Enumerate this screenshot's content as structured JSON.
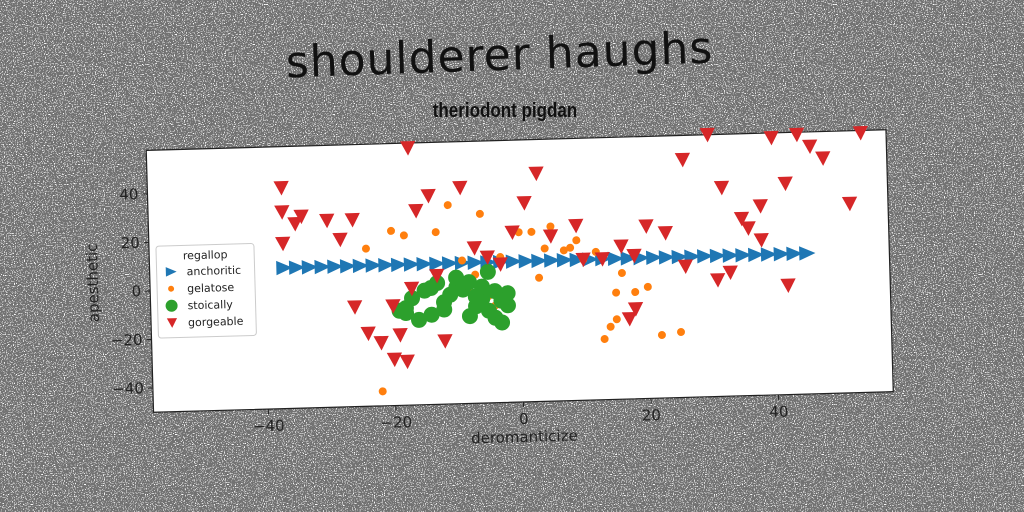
{
  "chart_data": {
    "type": "scatter",
    "title": "shoulderer haughs",
    "subtitle": "theriodont pigdan",
    "xlabel": "deromanticize",
    "ylabel": "apesthetic",
    "xlim": [
      -58,
      58
    ],
    "ylim": [
      -50,
      58
    ],
    "xticks": [
      -40,
      -20,
      0,
      20,
      40
    ],
    "yticks": [
      -40,
      -20,
      0,
      20,
      40
    ],
    "grid": false,
    "legend": {
      "title": "regallop",
      "position": "center-left"
    },
    "series": [
      {
        "name": "anchoritic",
        "marker": "triangle-right",
        "color": "#1f77b4",
        "x": [
          -37,
          -35,
          -33,
          -31,
          -29,
          -27,
          -25,
          -23,
          -21,
          -19,
          -17,
          -15,
          -13,
          -11,
          -9,
          -7,
          -5,
          -3,
          -1,
          1,
          3,
          5,
          7,
          9,
          11,
          13,
          15,
          17,
          19,
          21,
          23,
          25,
          27,
          29,
          31,
          33,
          35,
          37,
          39,
          41,
          43,
          45
        ],
        "y": [
          8,
          8,
          8,
          8,
          8,
          8,
          8,
          8,
          8,
          8,
          8,
          8,
          8,
          8,
          8,
          8,
          8,
          8,
          8,
          8,
          8,
          8,
          8,
          8,
          8,
          8,
          8,
          8,
          8,
          8,
          8,
          8,
          8,
          8,
          8,
          8,
          8,
          8,
          8,
          8,
          8,
          8
        ]
      },
      {
        "name": "gelatose",
        "marker": "circle-small",
        "color": "#ff7f0e",
        "x": [
          -24,
          -20,
          -18,
          -13,
          -11,
          -9,
          -6,
          -3,
          0,
          2,
          3,
          5,
          7,
          8,
          9,
          10,
          12,
          14,
          15,
          15,
          16,
          18,
          20,
          22,
          25,
          -7,
          -5,
          -4,
          -2,
          -22,
          -8,
          4,
          13
        ],
        "y": [
          15,
          22,
          20,
          21,
          32,
          9,
          28,
          10,
          20,
          20,
          1,
          22,
          12,
          13,
          16,
          8,
          11,
          -20,
          -17,
          -6,
          2,
          -6,
          -4,
          -24,
          -23,
          3,
          -6,
          -10,
          -4,
          -44,
          -2,
          13,
          -25
        ],
        "size": 5
      },
      {
        "name": "stoically",
        "marker": "circle",
        "color": "#2ca02c",
        "x": [
          -19,
          -18,
          -17,
          -15,
          -14,
          -13,
          -12,
          -11,
          -10,
          -9,
          -8,
          -7,
          -6,
          -5,
          -4,
          -3,
          -2,
          -2,
          -4,
          -6,
          -8,
          -10,
          -12,
          -14,
          -16,
          -18,
          -7,
          -3,
          -5
        ],
        "y": [
          -11,
          -12,
          -6,
          -3,
          -2,
          0,
          -8,
          -5,
          -2,
          -3,
          -14,
          -10,
          -7,
          -12,
          -15,
          -17,
          -10,
          -5,
          -4,
          -2,
          0,
          2,
          -11,
          -13,
          -15,
          -10,
          -6,
          -8,
          4
        ],
        "size": 10
      },
      {
        "name": "gorgeable",
        "marker": "triangle-down",
        "color": "#d62728",
        "x": [
          -37,
          -37,
          -35,
          -34,
          -37,
          -30,
          -28,
          -26,
          -22,
          -20,
          -18,
          -17,
          -16,
          -14,
          -12,
          -9,
          -5,
          -3,
          1,
          3,
          5,
          9,
          13,
          16,
          18,
          20,
          23,
          26,
          30,
          32,
          33,
          36,
          38,
          40,
          42,
          44,
          46,
          48,
          52,
          54,
          -26,
          -24,
          -20,
          -19,
          -17,
          -13,
          -7,
          -1,
          10,
          17,
          18,
          26,
          31,
          35,
          38,
          42
        ],
        "y": [
          41,
          31,
          26,
          29,
          18,
          27,
          19,
          27,
          -24,
          -31,
          -32,
          56,
          30,
          36,
          -24,
          39,
          10,
          7,
          32,
          44,
          18,
          22,
          8,
          13,
          9,
          21,
          18,
          48,
          58,
          36,
          1,
          19,
          28,
          56,
          37,
          57,
          52,
          47,
          28,
          57,
          -9,
          -20,
          -9,
          -21,
          -2,
          3,
          14,
          20,
          8,
          -17,
          -13,
          4,
          -2,
          23,
          14,
          -5
        ],
        "size": 11
      }
    ]
  }
}
